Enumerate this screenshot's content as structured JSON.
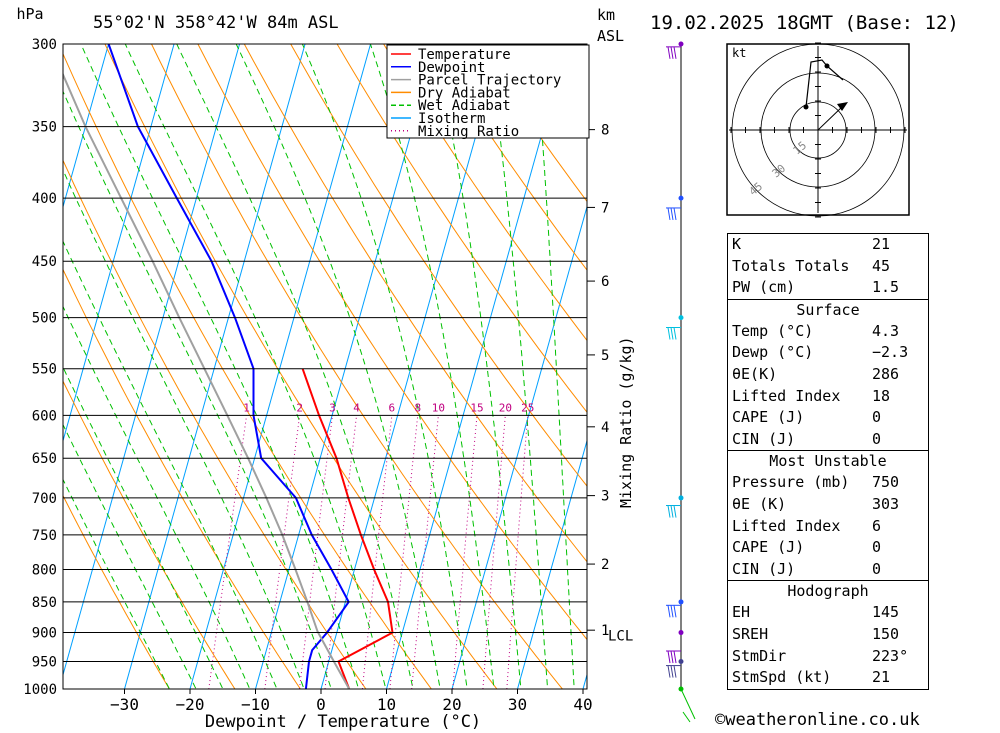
{
  "header": {
    "pressure_unit": "hPa",
    "location": "55°02'N 358°42'W 84m ASL",
    "height_unit_line1": "km",
    "height_unit_line2": "ASL",
    "datetime": "19.02.2025 18GMT (Base: 12)"
  },
  "chart_data": {
    "type": "skew-t",
    "xlabel": "Dewpoint / Temperature (°C)",
    "ylabel": "hPa",
    "right_axis_label": "Mixing Ratio (g/kg)",
    "x_ticks": [
      -30,
      -20,
      -10,
      0,
      10,
      20,
      30,
      40
    ],
    "pressure_levels": [
      300,
      350,
      400,
      450,
      500,
      550,
      600,
      650,
      700,
      750,
      800,
      850,
      900,
      950,
      1000
    ],
    "height_ticks_km": [
      {
        "label": "8",
        "p": 352
      },
      {
        "label": "7",
        "p": 407
      },
      {
        "label": "6",
        "p": 467
      },
      {
        "label": "5",
        "p": 536
      },
      {
        "label": "4",
        "p": 613
      },
      {
        "label": "3",
        "p": 697
      },
      {
        "label": "2",
        "p": 792
      },
      {
        "label": "1",
        "p": 896
      }
    ],
    "lcl_label": "LCL",
    "lcl_pressure": 898,
    "mixing_ratio_labels": [
      "1",
      "2",
      "3",
      "4",
      "6",
      "8",
      "10",
      "15",
      "20",
      "25"
    ],
    "mixing_ratio_values": [
      1,
      2,
      3,
      4,
      6,
      8,
      10,
      15,
      20,
      25
    ],
    "legend": [
      {
        "name": "Temperature",
        "color": "#ff0000"
      },
      {
        "name": "Dewpoint",
        "color": "#0000ff"
      },
      {
        "name": "Parcel Trajectory",
        "color": "#a0a0a0"
      },
      {
        "name": "Dry Adiabat",
        "color": "#ff8c00"
      },
      {
        "name": "Wet Adiabat",
        "color": "#00c000"
      },
      {
        "name": "Isotherm",
        "color": "#00a0ff"
      },
      {
        "name": "Mixing Ratio",
        "color": "#c00080"
      }
    ],
    "series": [
      {
        "name": "Temperature",
        "color": "#ff0000",
        "points": [
          [
            1000,
            4.3
          ],
          [
            950,
            1.5
          ],
          [
            900,
            8.5
          ],
          [
            850,
            6.5
          ],
          [
            800,
            3
          ],
          [
            750,
            -0.5
          ],
          [
            700,
            -4
          ],
          [
            650,
            -7.5
          ],
          [
            600,
            -12
          ],
          [
            550,
            -16.5
          ]
        ]
      },
      {
        "name": "Dewpoint",
        "color": "#0000ff",
        "points": [
          [
            1000,
            -2.3
          ],
          [
            950,
            -3
          ],
          [
            930,
            -3
          ],
          [
            900,
            -1.5
          ],
          [
            850,
            0.5
          ],
          [
            800,
            -3.5
          ],
          [
            750,
            -8
          ],
          [
            700,
            -12
          ],
          [
            650,
            -19
          ],
          [
            600,
            -22
          ],
          [
            550,
            -24
          ],
          [
            500,
            -29
          ],
          [
            450,
            -35
          ],
          [
            400,
            -43
          ],
          [
            350,
            -52
          ],
          [
            300,
            -60
          ]
        ]
      },
      {
        "name": "Parcel Trajectory",
        "color": "#a0a0a0",
        "points": [
          [
            1000,
            4.3
          ],
          [
            950,
            0.8
          ],
          [
            898,
            -3.0
          ],
          [
            850,
            -5.8
          ],
          [
            800,
            -9
          ],
          [
            750,
            -12.5
          ],
          [
            700,
            -16.5
          ],
          [
            650,
            -21
          ],
          [
            600,
            -26
          ],
          [
            550,
            -31.5
          ],
          [
            500,
            -37.5
          ],
          [
            450,
            -44
          ],
          [
            400,
            -51.5
          ],
          [
            350,
            -60
          ],
          [
            300,
            -69
          ]
        ]
      }
    ]
  },
  "hodograph": {
    "unit": "kt",
    "ring_labels": [
      "15",
      "30",
      "45"
    ]
  },
  "indices": {
    "general": [
      {
        "label": "K",
        "value": "21"
      },
      {
        "label": "Totals Totals",
        "value": "45"
      },
      {
        "label": "PW (cm)",
        "value": "1.5"
      }
    ],
    "surface_title": "Surface",
    "surface": [
      {
        "label": "Temp (°C)",
        "value": "4.3"
      },
      {
        "label": "Dewp (°C)",
        "value": "-2.3"
      },
      {
        "label": "θE(K)",
        "value": "286"
      },
      {
        "label": "Lifted Index",
        "value": "18"
      },
      {
        "label": "CAPE (J)",
        "value": "0"
      },
      {
        "label": "CIN (J)",
        "value": "0"
      }
    ],
    "most_unstable_title": "Most Unstable",
    "most_unstable": [
      {
        "label": "Pressure (mb)",
        "value": "750"
      },
      {
        "label": "θE (K)",
        "value": "303"
      },
      {
        "label": "Lifted Index",
        "value": "6"
      },
      {
        "label": "CAPE (J)",
        "value": "0"
      },
      {
        "label": "CIN (J)",
        "value": "0"
      }
    ],
    "hodograph_title": "Hodograph",
    "hodograph": [
      {
        "label": "EH",
        "value": "145"
      },
      {
        "label": "SREH",
        "value": "150"
      },
      {
        "label": "StmDir",
        "value": "223°"
      },
      {
        "label": "StmSpd (kt)",
        "value": "21"
      }
    ]
  },
  "footer": {
    "copyright": "©weatheronline.co.uk"
  }
}
